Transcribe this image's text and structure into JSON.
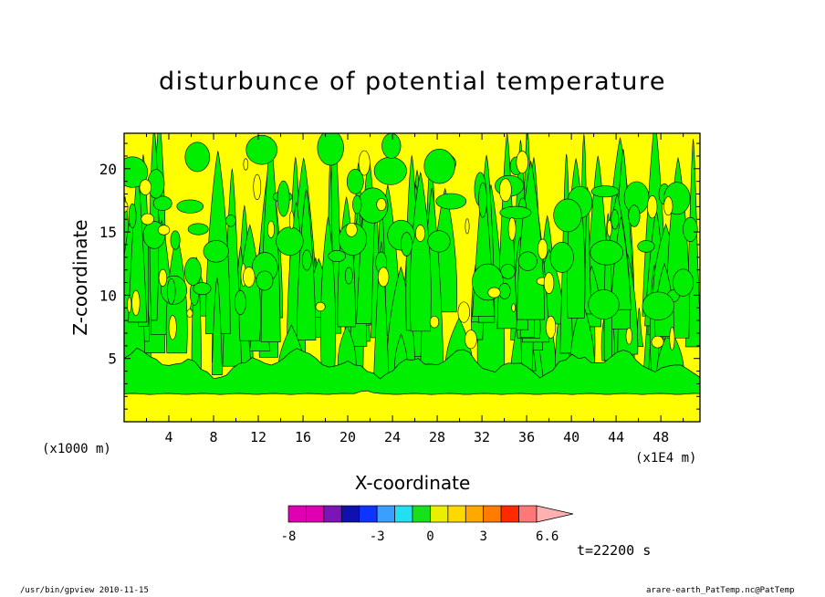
{
  "chart_data": {
    "type": "contour",
    "title": "disturbunce of potential temperature",
    "xlabel": "X-coordinate",
    "ylabel": "Z-coordinate",
    "x_unit_left": "(x1000 m)",
    "x_unit_right": "(x1E4 m)",
    "xlim": [
      0,
      51.5
    ],
    "ylim": [
      0,
      22.8
    ],
    "x_ticks": [
      4,
      8,
      12,
      16,
      20,
      24,
      28,
      32,
      36,
      40,
      44,
      48
    ],
    "y_ticks": [
      5,
      10,
      15,
      20
    ],
    "colorbar": {
      "levels": [
        -8,
        -7,
        -6,
        -5,
        -4,
        -3,
        -2,
        -1,
        0,
        1,
        2,
        3,
        4,
        5,
        6,
        6.6
      ],
      "tick_labels": [
        "-8",
        "-3",
        "0",
        "3",
        "6.6"
      ],
      "colors": [
        "#e000b4",
        "#e000b4",
        "#7c14b8",
        "#1010b0",
        "#1034ff",
        "#3aa0ff",
        "#22e0f0",
        "#18e01c",
        "#e8f000",
        "#ffd800",
        "#ffa800",
        "#ff7c00",
        "#ff2a00",
        "#ff7878",
        "#ffb0b0"
      ]
    },
    "bands": [
      {
        "z_from": 0,
        "z_to": 2.2,
        "sign": "positive",
        "color": "#ffff00"
      },
      {
        "z_from": 2.2,
        "z_to": 4.4,
        "sign": "negative",
        "color": "#00ee00"
      },
      {
        "z_from": 4.4,
        "z_to": 22.8,
        "sign": "alternating plumes",
        "colors": [
          "#ffff00",
          "#00ee00"
        ]
      }
    ]
  },
  "time_label": "t=22200 s",
  "footer": {
    "left": "/usr/bin/gpview   2010-11-15",
    "right": "arare-earth_PatTemp.nc@PatTemp"
  }
}
